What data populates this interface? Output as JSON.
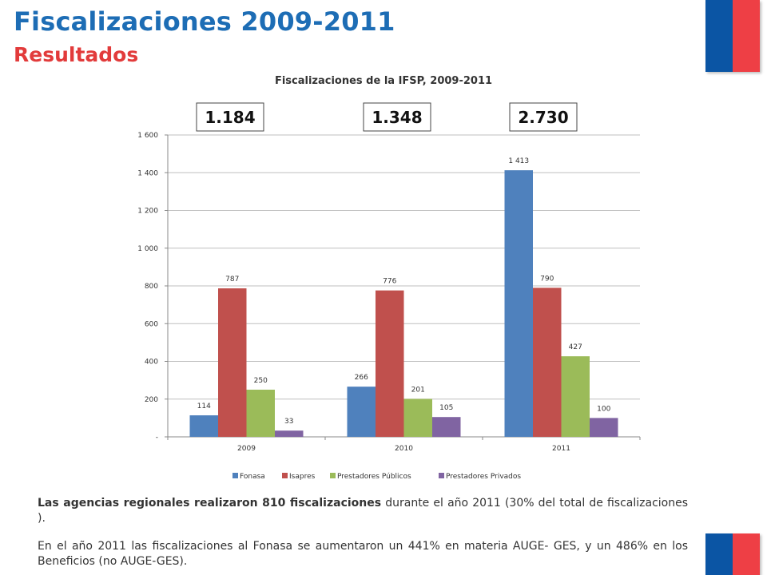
{
  "header": {
    "title": "Fiscalizaciones 2009-2011",
    "subtitle": "Resultados"
  },
  "colors": {
    "title": "#1d6db5",
    "subtitle": "#e23b3b",
    "flag_blue": "#0b55a4",
    "flag_red": "#ee3f45"
  },
  "totals": [
    "1.184",
    "1.348",
    "2.730"
  ],
  "chart_data": {
    "type": "bar",
    "title": "Fiscalizaciones de la IFSP, 2009-2011",
    "categories": [
      "2009",
      "2010",
      "2011"
    ],
    "series": [
      {
        "name": "Fonasa",
        "values": [
          114,
          266,
          1413
        ],
        "labels": [
          "114",
          "266",
          "1 413"
        ],
        "color": "#4f81bd"
      },
      {
        "name": "Isapres",
        "values": [
          787,
          776,
          790
        ],
        "labels": [
          "787",
          "776",
          "790"
        ],
        "color": "#c0504d"
      },
      {
        "name": "Prestadores Públicos",
        "values": [
          250,
          201,
          427
        ],
        "labels": [
          "250",
          "201",
          "427"
        ],
        "color": "#9bbb59"
      },
      {
        "name": "Prestadores Privados",
        "values": [
          33,
          105,
          100
        ],
        "labels": [
          "33",
          "105",
          "100"
        ],
        "color": "#8064a2"
      }
    ],
    "ylim": [
      0,
      1600
    ],
    "yticks": [
      0,
      200,
      400,
      600,
      800,
      1000,
      1200,
      1400,
      1600
    ],
    "ytick_labels": [
      "-",
      "200",
      "400",
      "600",
      "800",
      "1 000",
      "1 200",
      "1 400",
      "1 600"
    ],
    "grid": true,
    "legend": "bottom"
  },
  "paragraphs": [
    {
      "bold": "Las agencias regionales realizaron 810 fiscalizaciones",
      "text": " durante el año 2011 (30% del total de fiscalizaciones )."
    },
    {
      "text": "En el año 2011 las fiscalizaciones al Fonasa se aumentaron un 441% en materia AUGE- GES, y un 486% en los Beneficios (no AUGE-GES)."
    }
  ]
}
